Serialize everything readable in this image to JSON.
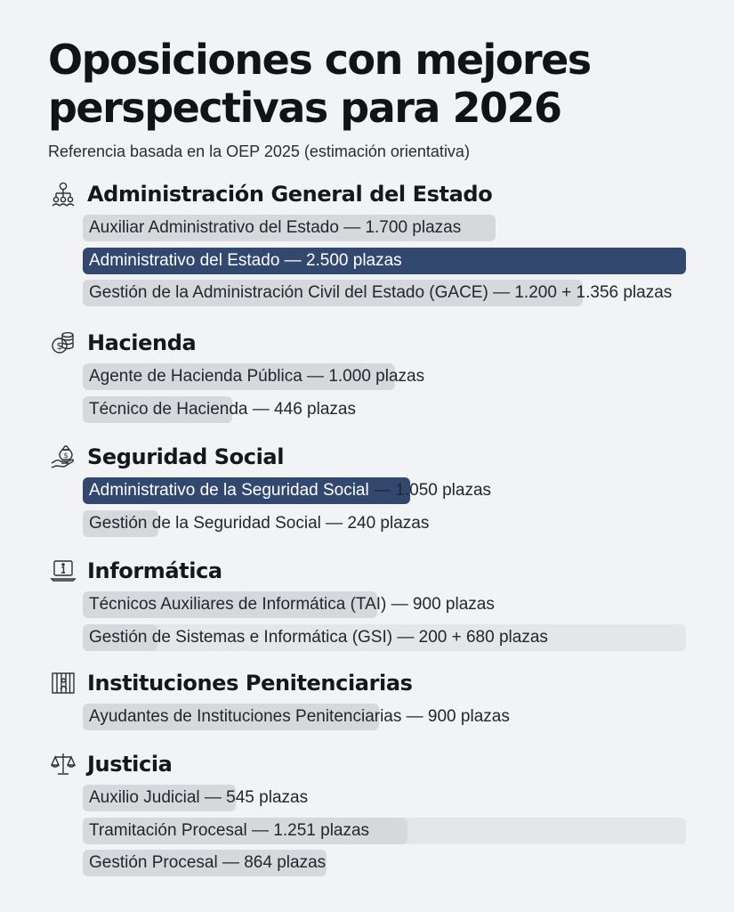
{
  "header": {
    "title": "Oposiciones con mejores perspectivas para 2026",
    "subtitle": "Referencia basada en la OEP 2025 (estimación orientativa)"
  },
  "colors": {
    "background": "#f2f3f5",
    "bar": "#d6d8dc",
    "bar_faint": "#e4e6e9",
    "accent_bar": "#33486f"
  },
  "sections": [
    {
      "title": "Administración General del Estado",
      "icon": "organization-chart-icon",
      "items": [
        {
          "label": "Auxiliar Administrativo del Estado — 1.700 plazas"
        },
        {
          "label": "Administrativo del Estado — 2.500 plazas"
        },
        {
          "label": "Gestión de la Administración Civil del Estado (GACE) — 1.200 + 1.356 plazas"
        }
      ]
    },
    {
      "title": "Hacienda",
      "icon": "coins-icon",
      "items": [
        {
          "label": "Agente de Hacienda Pública — 1.000 plazas"
        },
        {
          "label": "Técnico de Hacienda — 446 plazas"
        }
      ]
    },
    {
      "title": "Seguridad Social",
      "icon": "hand-money-bag-icon",
      "items": [
        {
          "label_a": "Administrativo de la Seguridad Social ",
          "label_b": "— 1.050 plazas"
        },
        {
          "label": "Gestión de la Seguridad Social — 240 plazas"
        }
      ]
    },
    {
      "title": "Informática",
      "icon": "laptop-info-icon",
      "items": [
        {
          "label": "Técnicos Auxiliares de Informática (TAI) — 900 plazas"
        },
        {
          "label": "Gestión de Sistemas e Informática (GSI) — 200 + 680 plazas"
        }
      ]
    },
    {
      "title": "Instituciones Penitenciarias",
      "icon": "prison-bars-icon",
      "items": [
        {
          "label": "Ayudantes de Instituciones Penitenciarias — 900 plazas"
        }
      ]
    },
    {
      "title": "Justicia",
      "icon": "scales-of-justice-icon",
      "items": [
        {
          "label": "Auxilio Judicial — 545 plazas"
        },
        {
          "label": "Tramitación Procesal — 1.251 plazas"
        },
        {
          "label": "Gestión Procesal — 864 plazas"
        }
      ]
    }
  ]
}
